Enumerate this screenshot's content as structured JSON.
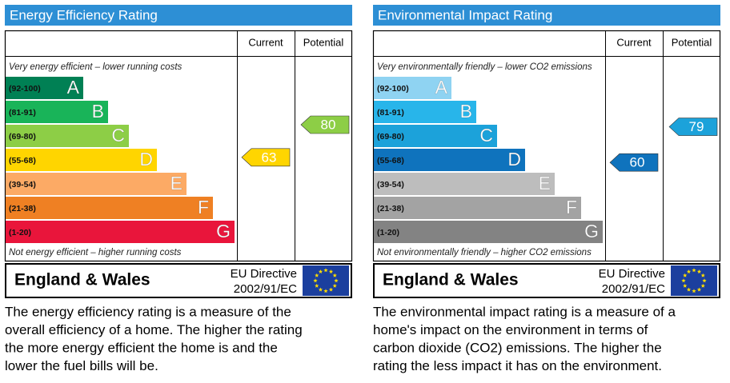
{
  "panels": [
    {
      "title": "Energy Efficiency Rating",
      "current_header": "Current",
      "potential_header": "Potential",
      "top_note": "Very energy efficient – lower running costs",
      "bands": [
        {
          "range": "(92-100)",
          "letter": "A",
          "color": "#008054"
        },
        {
          "range": "(81-91)",
          "letter": "B",
          "color": "#19b459"
        },
        {
          "range": "(69-80)",
          "letter": "C",
          "color": "#8dce46"
        },
        {
          "range": "(55-68)",
          "letter": "D",
          "color": "#ffd500"
        },
        {
          "range": "(39-54)",
          "letter": "E",
          "color": "#fcaa65"
        },
        {
          "range": "(21-38)",
          "letter": "F",
          "color": "#ef8023"
        },
        {
          "range": "(1-20)",
          "letter": "G",
          "color": "#e9153b"
        }
      ],
      "bottom_note": "Not energy efficient – higher running costs",
      "current": 63,
      "potential": 80,
      "region": "England & Wales",
      "directive": [
        "EU Directive",
        "2002/91/EC"
      ],
      "description": [
        "The energy efficiency rating is a measure of the",
        "overall efficiency of a home.  The higher the rating",
        "the more energy efficient the home is and the",
        "lower the fuel bills will be."
      ]
    },
    {
      "title": "Environmental Impact Rating",
      "current_header": "Current",
      "potential_header": "Potential",
      "top_note": "Very environmentally friendly – lower CO2 emissions",
      "bands": [
        {
          "range": "(92-100)",
          "letter": "A",
          "color": "#8fd3f2"
        },
        {
          "range": "(81-91)",
          "letter": "B",
          "color": "#28b5ea"
        },
        {
          "range": "(69-80)",
          "letter": "C",
          "color": "#1ca2da"
        },
        {
          "range": "(55-68)",
          "letter": "D",
          "color": "#0f73bd"
        },
        {
          "range": "(39-54)",
          "letter": "E",
          "color": "#bdbdbd"
        },
        {
          "range": "(21-38)",
          "letter": "F",
          "color": "#a3a3a3"
        },
        {
          "range": "(1-20)",
          "letter": "G",
          "color": "#838383"
        }
      ],
      "bottom_note": "Not environmentally friendly – higher CO2 emissions",
      "current": 60,
      "potential": 79,
      "region": "England & Wales",
      "directive": [
        "EU Directive",
        "2002/91/EC"
      ],
      "description": [
        "The environmental impact rating is a measure of a",
        "home's impact on the environment in terms of",
        "carbon dioxide (CO2) emissions.  The higher the",
        "rating the less impact it has on the environment."
      ]
    }
  ]
}
